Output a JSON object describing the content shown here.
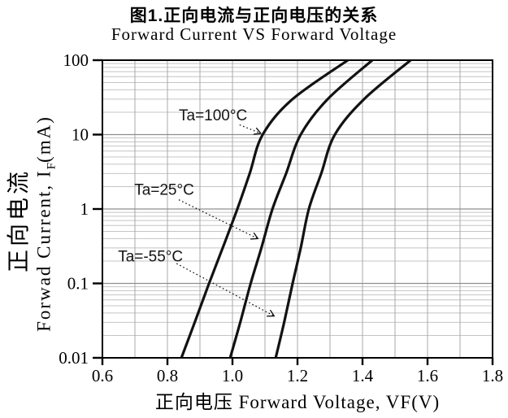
{
  "figure": {
    "title_cn": "图1.正向电流与正向电压的关系",
    "title_en": "Forward Current VS Forward Voltage"
  },
  "axes": {
    "x": {
      "label": "正向电压 Forward Voltage, VF(V)"
    },
    "y": {
      "label_cn": "正向电流",
      "label_en_main": "Forwad Current, I",
      "label_en_sub": "F",
      "label_en_unit": "(mA)"
    }
  },
  "colors": {
    "curve": "#121212",
    "axis": "#000000",
    "grid_vertical": "#a8a8a8",
    "grid_decade": "#8f8f8f",
    "grid_minor": "#c4c4c4",
    "annotation": "#141414"
  },
  "chart_data": {
    "type": "line",
    "title": "图1.正向电流与正向电压的关系",
    "subtitle": "Forward Current VS Forward Voltage",
    "xlabel": "正向电压 Forward Voltage, VF(V)",
    "ylabel": "正向电流 Forwad Current, IF(mA)",
    "grid": true,
    "x_axis": {
      "min": 0.6,
      "max": 1.8,
      "minor_step": 0.1,
      "major_ticks": [
        {
          "v": 0.6,
          "label": "0.6"
        },
        {
          "v": 0.8,
          "label": "0.8"
        },
        {
          "v": 1.0,
          "label": "1.0"
        },
        {
          "v": 1.2,
          "label": "1.2"
        },
        {
          "v": 1.4,
          "label": "1.4"
        },
        {
          "v": 1.6,
          "label": "1.6"
        },
        {
          "v": 1.8,
          "label": "1.8"
        }
      ]
    },
    "y_axis": {
      "scale": "log",
      "min": 0.01,
      "max": 100,
      "ticks": [
        {
          "v": 100,
          "label": "100"
        },
        {
          "v": 10,
          "label": "10"
        },
        {
          "v": 1,
          "label": "1"
        },
        {
          "v": 0.1,
          "label": "0.1"
        },
        {
          "v": 0.01,
          "label": "0.01"
        }
      ]
    },
    "series": [
      {
        "name": "Ta=100°C",
        "points": [
          [
            0.843,
            0.01
          ],
          [
            0.884,
            0.03
          ],
          [
            0.928,
            0.1
          ],
          [
            0.97,
            0.3
          ],
          [
            1.015,
            1
          ],
          [
            1.053,
            3
          ],
          [
            1.093,
            10
          ],
          [
            1.185,
            30
          ],
          [
            1.355,
            100
          ]
        ]
      },
      {
        "name": "Ta=25°C",
        "points": [
          [
            0.993,
            0.01
          ],
          [
            1.024,
            0.03
          ],
          [
            1.056,
            0.1
          ],
          [
            1.089,
            0.3
          ],
          [
            1.123,
            1
          ],
          [
            1.165,
            3
          ],
          [
            1.21,
            10
          ],
          [
            1.293,
            30
          ],
          [
            1.43,
            100
          ]
        ]
      },
      {
        "name": "Ta=-55°C",
        "points": [
          [
            1.133,
            0.01
          ],
          [
            1.159,
            0.03
          ],
          [
            1.185,
            0.1
          ],
          [
            1.21,
            0.3
          ],
          [
            1.235,
            1
          ],
          [
            1.273,
            3
          ],
          [
            1.315,
            10
          ],
          [
            1.405,
            30
          ],
          [
            1.548,
            100
          ]
        ]
      }
    ],
    "annotations": [
      {
        "text": "Ta=100°C",
        "label_v": 0.835,
        "label_i": 15.6,
        "arrow_from_v": 1.022,
        "arrow_from_i": 13.5,
        "arrow_to_v": 1.087,
        "arrow_to_i": 10.4
      },
      {
        "text": "Ta=25°C",
        "label_v": 0.698,
        "label_i": 1.55,
        "arrow_from_v": 0.835,
        "arrow_from_i": 1.33,
        "arrow_to_v": 1.078,
        "arrow_to_i": 0.4
      },
      {
        "text": "Ta=-55°C",
        "label_v": 0.648,
        "label_i": 0.198,
        "arrow_from_v": 0.828,
        "arrow_from_i": 0.185,
        "arrow_to_v": 1.128,
        "arrow_to_i": 0.0365
      }
    ]
  }
}
